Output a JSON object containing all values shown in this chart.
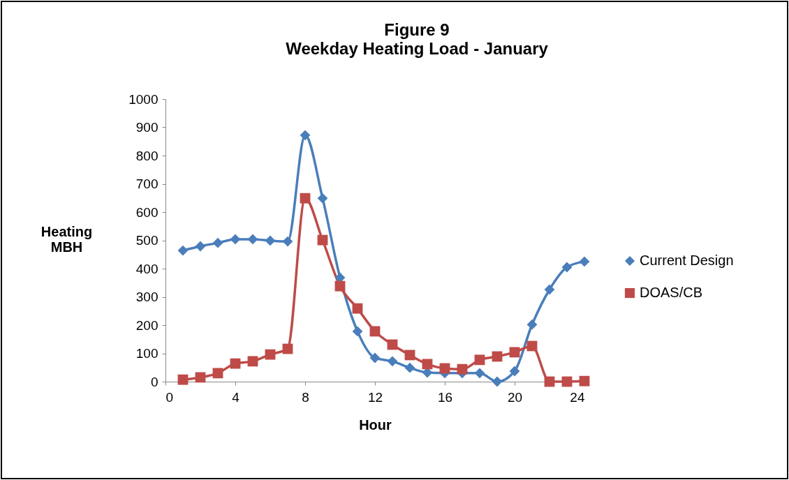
{
  "chart_data": {
    "type": "line",
    "title": "Figure 9",
    "subtitle": "Weekday Heating Load - January",
    "xlabel": "Hour",
    "ylabel": "Heating MBH",
    "x": [
      1,
      2,
      3,
      4,
      5,
      6,
      7,
      8,
      9,
      10,
      11,
      12,
      13,
      14,
      15,
      16,
      17,
      18,
      19,
      20,
      21,
      22,
      23,
      24
    ],
    "series": [
      {
        "name": "Current Design",
        "color": "#4a7ebb",
        "marker": "diamond",
        "values": [
          464,
          479,
          491,
          504,
          504,
          499,
          496,
          872,
          649,
          368,
          178,
          84,
          72,
          49,
          32,
          30,
          30,
          30,
          0,
          37,
          202,
          326,
          405,
          425
        ]
      },
      {
        "name": "DOAS/CB",
        "color": "#be4b48",
        "marker": "square",
        "values": [
          7,
          15,
          30,
          64,
          72,
          96,
          116,
          649,
          501,
          338,
          259,
          178,
          131,
          94,
          62,
          47,
          44,
          77,
          89,
          104,
          126,
          0,
          0,
          2
        ]
      }
    ],
    "xlim": [
      0,
      24
    ],
    "xticks": [
      0,
      4,
      8,
      12,
      16,
      20,
      24
    ],
    "ylim": [
      0,
      1000
    ],
    "yticks": [
      0,
      100,
      200,
      300,
      400,
      500,
      600,
      700,
      800,
      900,
      1000
    ],
    "grid": false,
    "legend": "right"
  }
}
